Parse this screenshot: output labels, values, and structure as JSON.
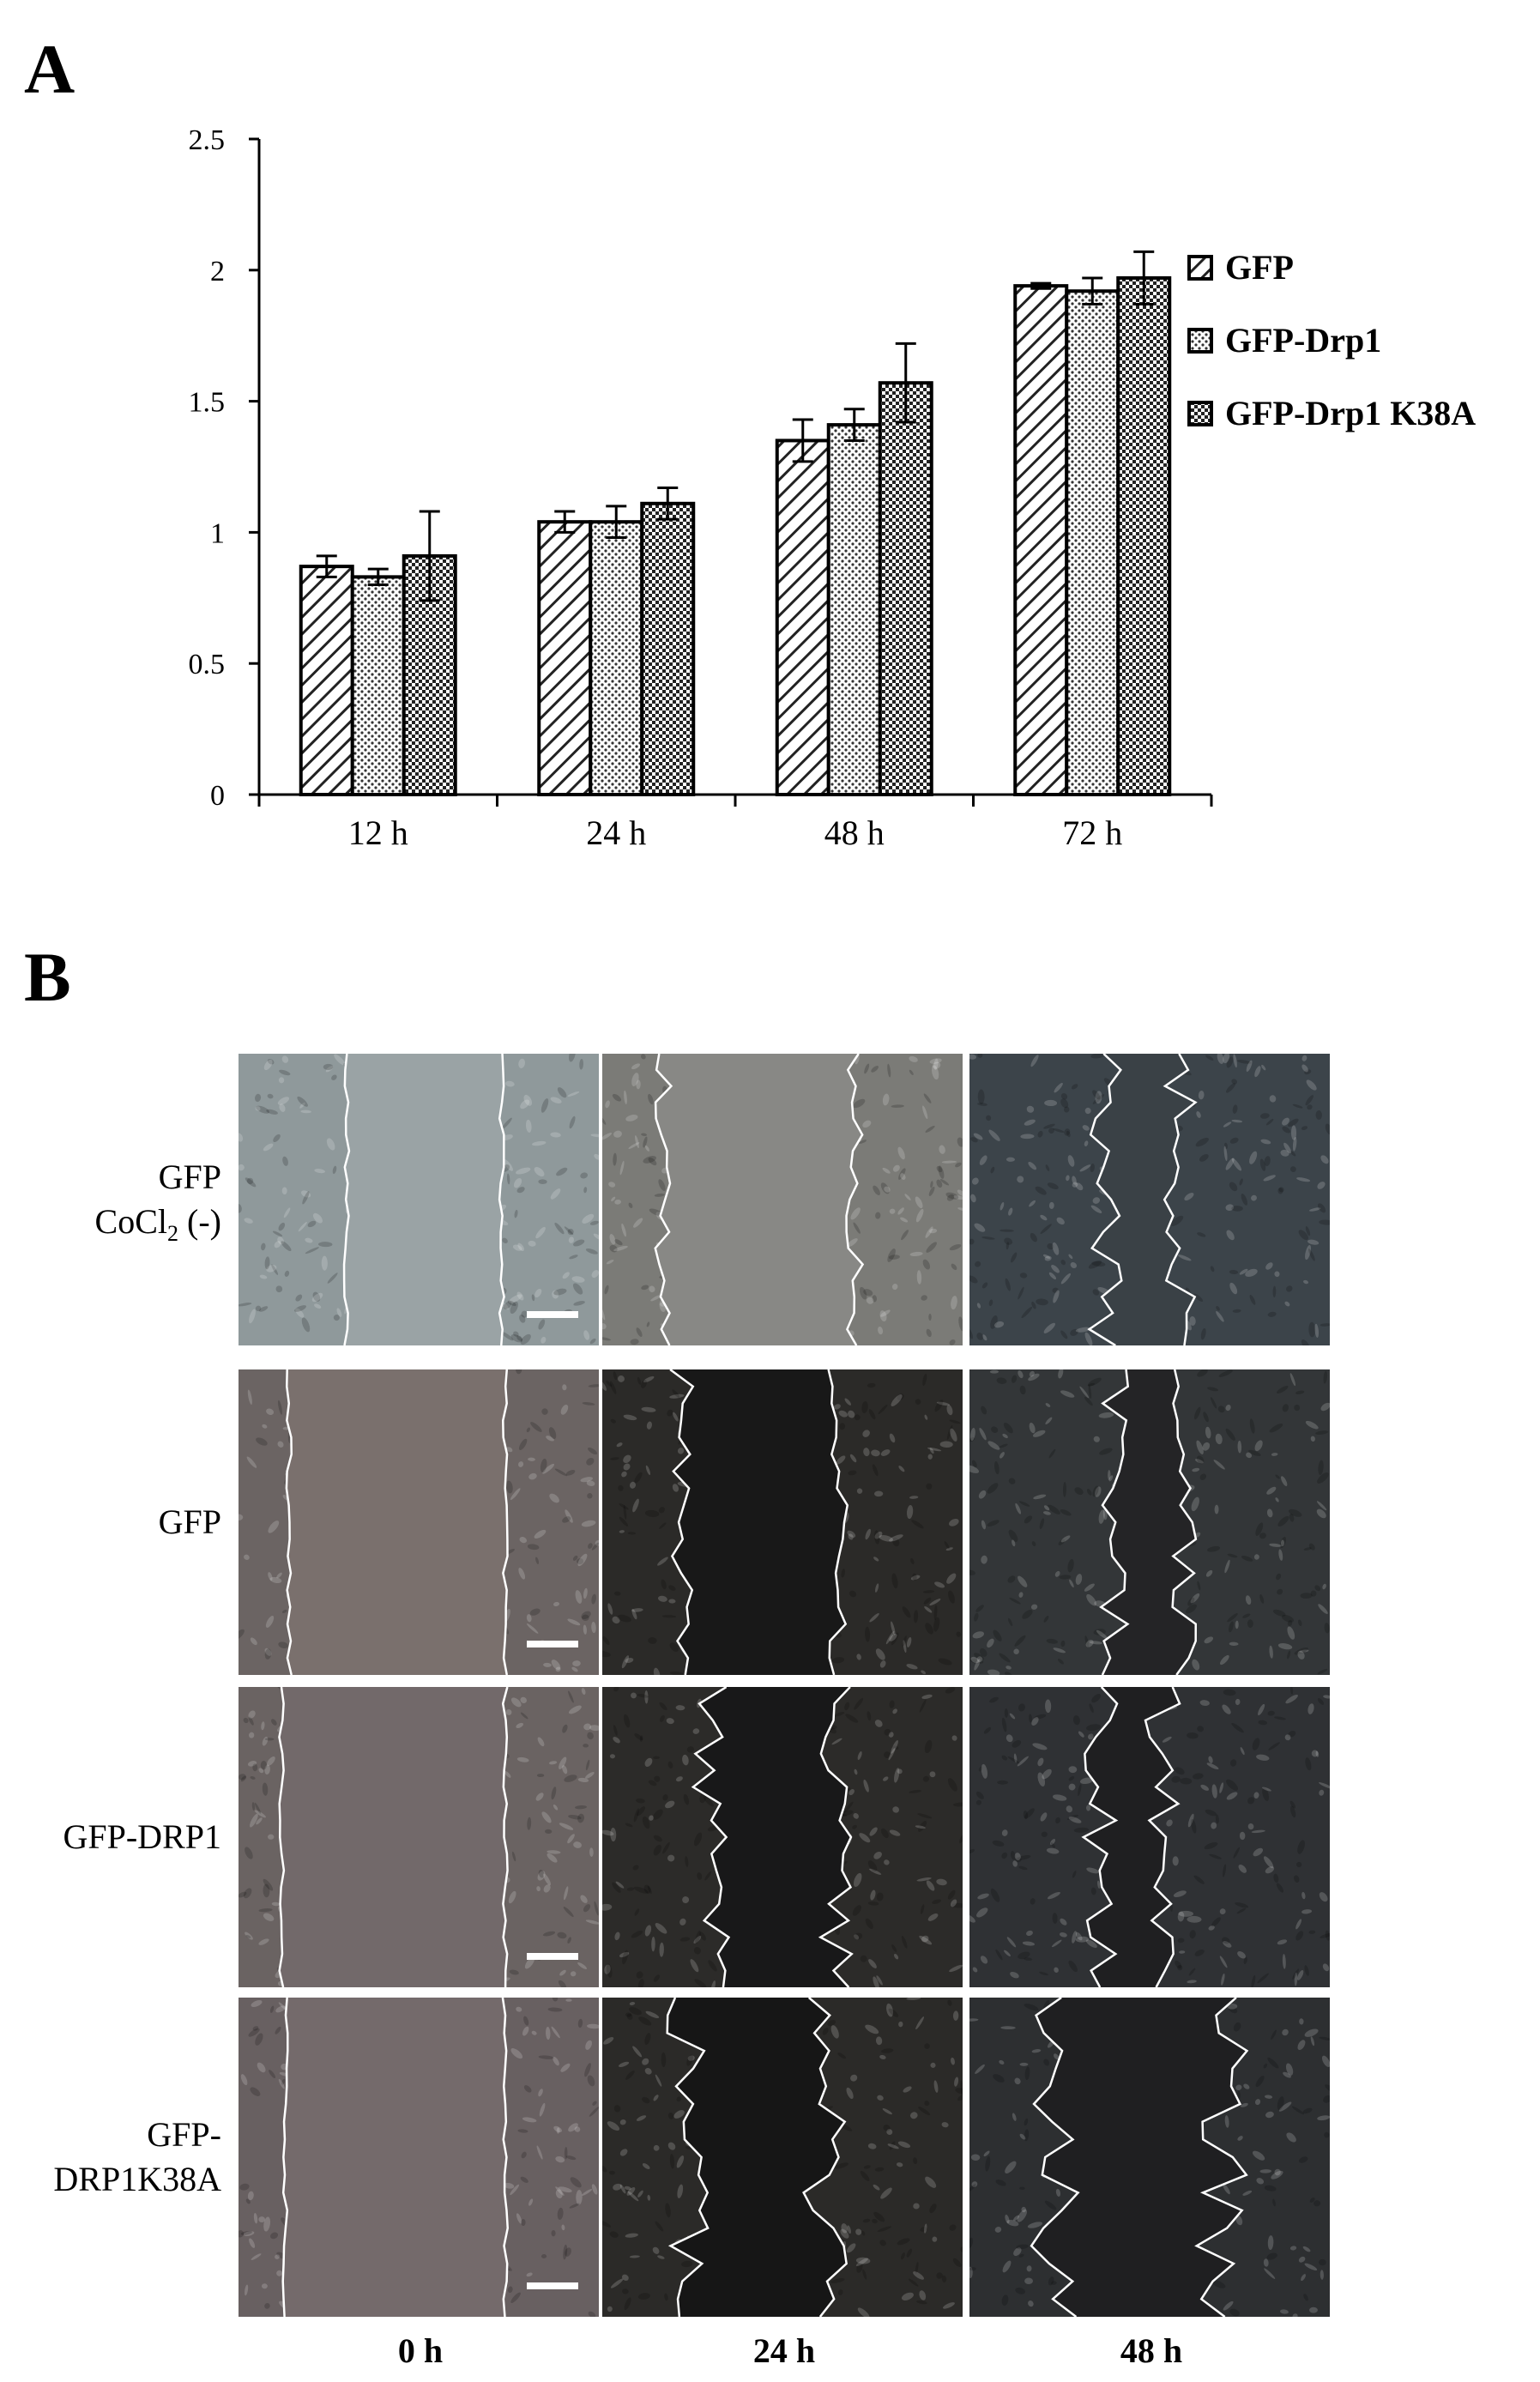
{
  "panel_a": {
    "letter": "A"
  },
  "panel_b": {
    "letter": "B",
    "row_labels": [
      {
        "line1": "GFP",
        "line2_main": "CoCl",
        "line2_sub": "2",
        "line2_rest": " (-)"
      },
      {
        "line1": "GFP"
      },
      {
        "line1": "GFP-DRP1"
      },
      {
        "line1": "GFP-",
        "line2_main": "DRP1K38A"
      }
    ],
    "col_labels": [
      "0 h",
      "24 h",
      "48 h"
    ],
    "panels": [
      {
        "row": 0,
        "col": 0,
        "bg": "#8f999b",
        "gap": "#9aa3a5",
        "edge": "#ffffff"
      },
      {
        "row": 0,
        "col": 1,
        "bg": "#7b7b77",
        "gap": "#888885",
        "edge": "#ffffff"
      },
      {
        "row": 0,
        "col": 2,
        "bg": "#3c444a",
        "gap": "#3a4146",
        "edge": "#ffffff"
      },
      {
        "row": 1,
        "col": 0,
        "bg": "#6b6463",
        "gap": "#7a706d",
        "edge": "#ffffff"
      },
      {
        "row": 1,
        "col": 1,
        "bg": "#2b2a28",
        "gap": "#181818",
        "edge": "#ffffff"
      },
      {
        "row": 1,
        "col": 2,
        "bg": "#333638",
        "gap": "#242426",
        "edge": "#ffffff"
      },
      {
        "row": 2,
        "col": 0,
        "bg": "#6a6362",
        "gap": "#72696a",
        "edge": "#ffffff"
      },
      {
        "row": 2,
        "col": 1,
        "bg": "#2c2b29",
        "gap": "#181819",
        "edge": "#ffffff"
      },
      {
        "row": 2,
        "col": 2,
        "bg": "#2f3134",
        "gap": "#1f1f21",
        "edge": "#ffffff"
      },
      {
        "row": 3,
        "col": 0,
        "bg": "#686061",
        "gap": "#746a6b",
        "edge": "#ffffff"
      },
      {
        "row": 3,
        "col": 1,
        "bg": "#2b2a28",
        "gap": "#161616",
        "edge": "#ffffff"
      },
      {
        "row": 3,
        "col": 2,
        "bg": "#2d2f31",
        "gap": "#1f1f21",
        "edge": "#ffffff"
      }
    ]
  },
  "chart_data": {
    "type": "bar",
    "title": "",
    "xlabel": "",
    "ylabel": "",
    "categories": [
      "12 h",
      "24 h",
      "48 h",
      "72 h"
    ],
    "ylim": [
      0,
      2.5
    ],
    "yticks": [
      "0",
      "0.5",
      "1",
      "1.5",
      "2",
      "2.5"
    ],
    "grid": false,
    "legend_position": "right",
    "series": [
      {
        "name": "GFP",
        "pattern": "diagonal-hatch",
        "values": [
          0.87,
          1.04,
          1.35,
          1.94
        ],
        "errors": [
          0.04,
          0.04,
          0.08,
          0.01
        ]
      },
      {
        "name": "GFP-Drp1",
        "pattern": "fine-dots",
        "values": [
          0.83,
          1.04,
          1.41,
          1.92
        ],
        "errors": [
          0.03,
          0.06,
          0.06,
          0.05
        ]
      },
      {
        "name": "GFP-Drp1 K38A",
        "pattern": "checker",
        "values": [
          0.91,
          1.11,
          1.57,
          1.97
        ],
        "errors": [
          0.17,
          0.06,
          0.15,
          0.1
        ]
      }
    ]
  }
}
